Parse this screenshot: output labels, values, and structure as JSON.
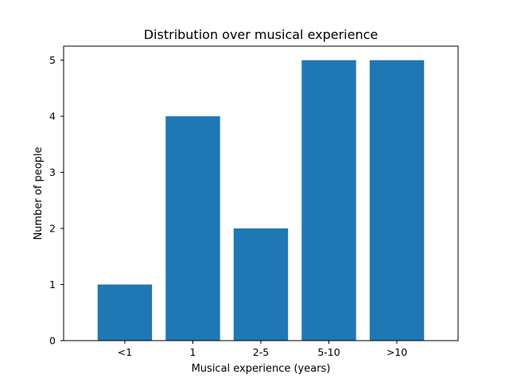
{
  "chart_data": {
    "type": "bar",
    "title": "Distribution over musical experience",
    "xlabel": "Musical experience (years)",
    "ylabel": "Number of people",
    "categories": [
      "<1",
      "1",
      "2-5",
      "5-10",
      ">10"
    ],
    "values": [
      1,
      4,
      2,
      5,
      5
    ],
    "ylim": [
      0,
      5.25
    ],
    "yticks": [
      0,
      1,
      2,
      3,
      4,
      5
    ],
    "grid": false,
    "bar_color": "#1f77b4"
  }
}
